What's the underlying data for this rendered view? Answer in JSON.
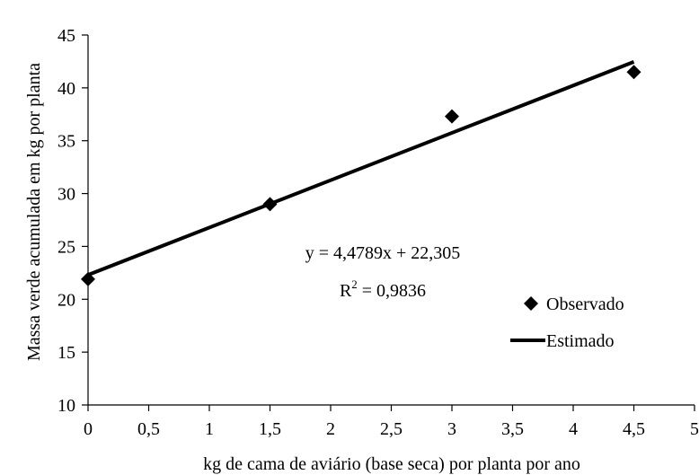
{
  "chart_data": {
    "type": "scatter",
    "title": "",
    "xlabel": "kg de cama de aviário (base seca) por planta por ano",
    "ylabel": "Massa verde acumulada em kg por planta",
    "xlim": [
      0,
      5
    ],
    "ylim": [
      10,
      45
    ],
    "x_ticks": [
      0,
      0.5,
      1,
      1.5,
      2,
      2.5,
      3,
      3.5,
      4,
      4.5,
      5
    ],
    "y_ticks": [
      10,
      15,
      20,
      25,
      30,
      35,
      40,
      45
    ],
    "x_tick_labels": [
      "0",
      "0,5",
      "1",
      "1,5",
      "2",
      "2,5",
      "3",
      "3,5",
      "4",
      "4,5",
      "5"
    ],
    "y_tick_labels": [
      "10",
      "15",
      "20",
      "25",
      "30",
      "35",
      "40",
      "45"
    ],
    "grid": false,
    "legend_position": "right",
    "series": [
      {
        "name": "Observado",
        "marker": "diamond",
        "color": "#000000",
        "x": [
          0,
          1.5,
          3,
          4.5
        ],
        "y": [
          21.9,
          29.0,
          37.3,
          41.5
        ]
      },
      {
        "name": "Estimado",
        "line": true,
        "color": "#000000",
        "x": [
          0,
          4.5
        ],
        "y": [
          22.305,
          42.46
        ]
      }
    ],
    "annotations": {
      "equation": "y = 4,4789x + 22,305",
      "r2_prefix": "R",
      "r2_sup": "2",
      "r2_value": " = 0,9836"
    }
  }
}
